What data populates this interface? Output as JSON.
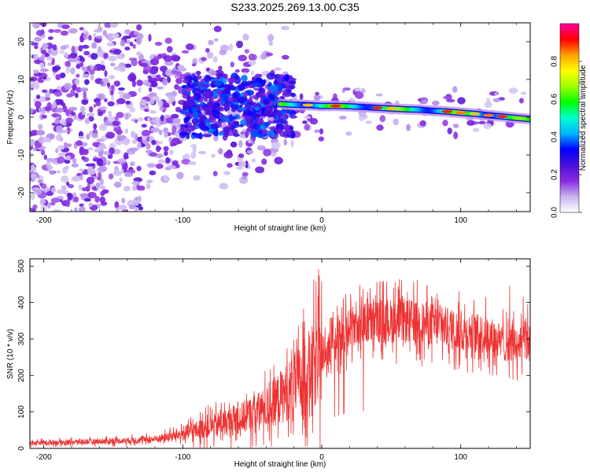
{
  "title": "S233.2025.269.13.00.C35",
  "chart_data": [
    {
      "type": "heatmap",
      "name": "spectrogram",
      "xlabel": "Height of straight line (km)",
      "ylabel": "Frequency (Hz)",
      "xlim": [
        -210,
        150
      ],
      "ylim": [
        -25,
        25
      ],
      "xticks": [
        -200,
        -100,
        0,
        100
      ],
      "yticks": [
        -20,
        -10,
        0,
        10,
        20
      ],
      "colorbar": {
        "label": "Normalized spectral amplitude",
        "range": [
          0,
          1
        ],
        "ticks": [
          "0.0",
          "0.2",
          "0.4",
          "0.6",
          "0.8"
        ],
        "colors": [
          "#ffffff",
          "#c8b4f0",
          "#8a2be2",
          "#4b0fd8",
          "#0000ff",
          "#00b4ff",
          "#00ffd0",
          "#00ff00",
          "#a0ff00",
          "#ffff00",
          "#ffa000",
          "#ff0000",
          "#ff00a0"
        ]
      },
      "ridge": [
        {
          "x": -30,
          "f": 3.5,
          "a": 0.5
        },
        {
          "x": -20,
          "f": 3.3,
          "a": 0.7
        },
        {
          "x": -10,
          "f": 3.2,
          "a": 0.8
        },
        {
          "x": 0,
          "f": 3.0,
          "a": 0.75
        },
        {
          "x": 10,
          "f": 3.0,
          "a": 0.9
        },
        {
          "x": 20,
          "f": 2.9,
          "a": 0.7
        },
        {
          "x": 30,
          "f": 2.7,
          "a": 0.7
        },
        {
          "x": 40,
          "f": 2.5,
          "a": 0.9
        },
        {
          "x": 50,
          "f": 2.3,
          "a": 0.8
        },
        {
          "x": 60,
          "f": 2.1,
          "a": 0.7
        },
        {
          "x": 70,
          "f": 2.0,
          "a": 0.7
        },
        {
          "x": 80,
          "f": 1.7,
          "a": 0.75
        },
        {
          "x": 90,
          "f": 1.5,
          "a": 0.9
        },
        {
          "x": 100,
          "f": 1.2,
          "a": 0.85
        },
        {
          "x": 110,
          "f": 0.9,
          "a": 0.8
        },
        {
          "x": 120,
          "f": 0.5,
          "a": 0.85
        },
        {
          "x": 130,
          "f": 0.2,
          "a": 0.9
        },
        {
          "x": 140,
          "f": -0.2,
          "a": 0.75
        },
        {
          "x": 150,
          "f": -0.5,
          "a": 0.7
        }
      ]
    },
    {
      "type": "line",
      "name": "snr",
      "xlabel": "Height of straight line (km)",
      "ylabel": "SNR (10 * v/v)",
      "xlim": [
        -210,
        150
      ],
      "ylim": [
        0,
        520
      ],
      "xticks": [
        -200,
        -100,
        0,
        100
      ],
      "yticks": [
        0,
        100,
        200,
        300,
        400,
        500
      ],
      "color": "#ee3333",
      "trend": {
        "x": [
          -210,
          -150,
          -120,
          -100,
          -80,
          -60,
          -40,
          -20,
          -10,
          0,
          10,
          20,
          40,
          60,
          80,
          100,
          120,
          130,
          140,
          150
        ],
        "y": [
          15,
          20,
          25,
          40,
          60,
          80,
          110,
          170,
          210,
          250,
          290,
          330,
          350,
          350,
          340,
          320,
          310,
          290,
          280,
          300
        ]
      }
    }
  ]
}
